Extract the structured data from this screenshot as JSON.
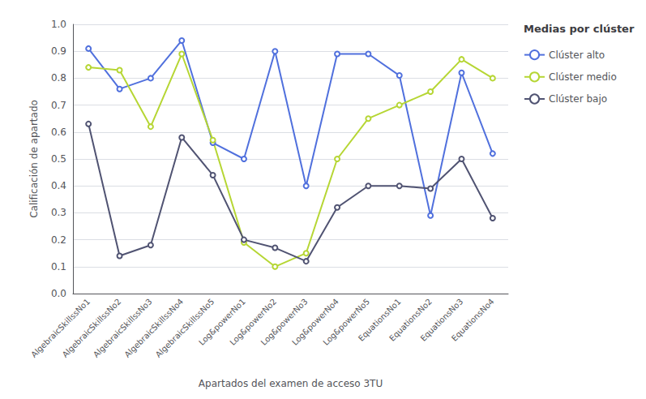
{
  "chart_data": {
    "type": "line",
    "xlabel": "Apartados del examen de acceso 3TU",
    "ylabel": "Calificación de apartado",
    "legend_title": "Medias por clúster",
    "categories": [
      "AlgebraicSkillssNo1",
      "AlgebraicSkillssNo2",
      "AlgebraicSkillssNo3",
      "AlgebraicSkillssNo4",
      "AlgebraicSkillssNo5",
      "Log&powerNo1",
      "Log&powerNo2",
      "Log&powerNo3",
      "Log&powerNo4",
      "Log&powerNo5",
      "EquationsNo1",
      "EquationsNo2",
      "EquationsNo3",
      "EquationsNo4"
    ],
    "series": [
      {
        "name": "Clúster alto",
        "values": [
          0.91,
          0.76,
          0.8,
          0.94,
          0.56,
          0.5,
          0.9,
          0.4,
          0.89,
          0.89,
          0.81,
          0.29,
          0.82,
          0.52
        ]
      },
      {
        "name": "Clúster medio",
        "values": [
          0.84,
          0.83,
          0.62,
          0.89,
          0.57,
          0.19,
          0.1,
          0.15,
          0.5,
          0.65,
          0.7,
          0.75,
          0.87,
          0.8
        ]
      },
      {
        "name": "Clúster bajo",
        "values": [
          0.63,
          0.14,
          0.18,
          0.58,
          0.44,
          0.2,
          0.17,
          0.12,
          0.32,
          0.4,
          0.4,
          0.39,
          0.5,
          0.28
        ]
      }
    ],
    "ylim": [
      0.0,
      1.0
    ],
    "yticks": [
      {
        "value": 0.0,
        "label": "0.0"
      },
      0.1,
      0.2,
      0.3,
      0.4,
      0.5,
      0.6,
      0.7,
      0.8,
      0.9,
      {
        "value": 1.0,
        "label": "1.0"
      }
    ],
    "grid": true,
    "legend": "right"
  }
}
